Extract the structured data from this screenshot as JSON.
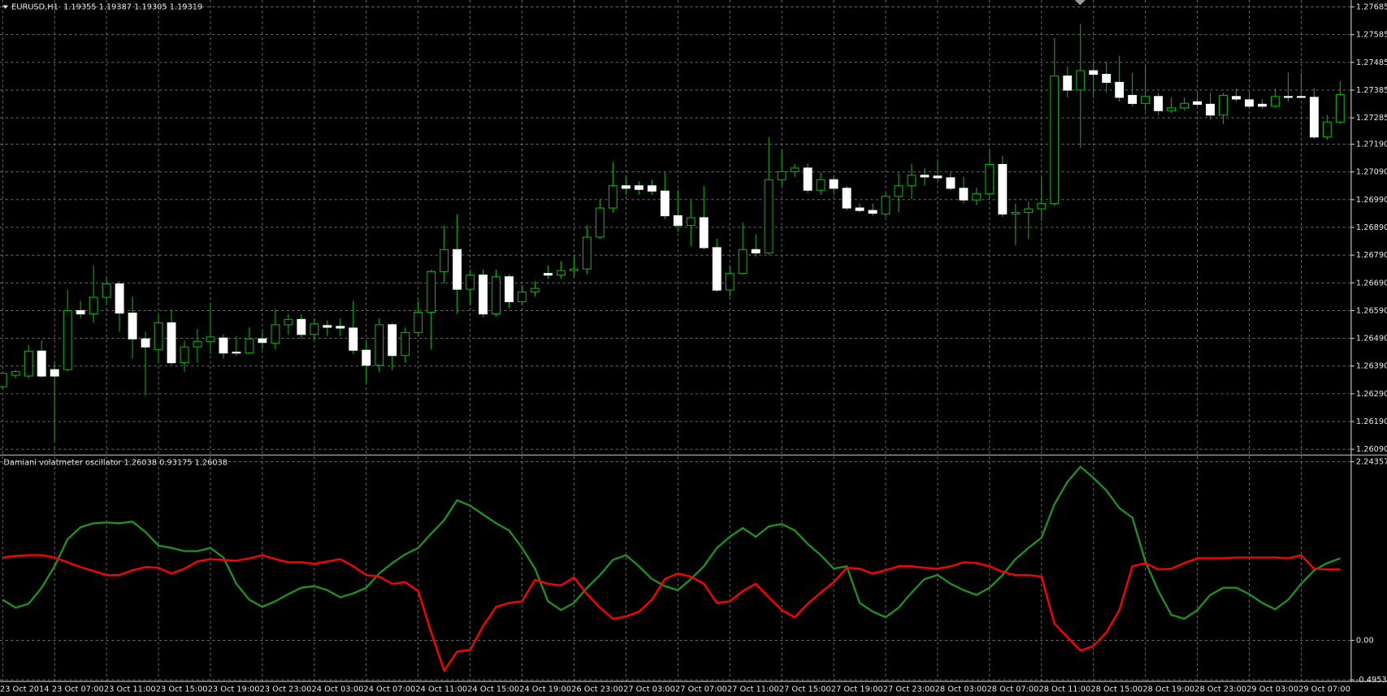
{
  "chart_data": [
    {
      "type": "candlestick",
      "title": "EURUSD,H1  1.19355 1.19387 1.19305 1.19319",
      "categories": [
        "23 Oct 2014",
        null,
        null,
        null,
        "23 Oct 07:00",
        null,
        null,
        null,
        "23 Oct 11:00",
        null,
        null,
        null,
        "23 Oct 15:00",
        null,
        null,
        null,
        "23 Oct 19:00",
        null,
        null,
        null,
        "23 Oct 23:00",
        null,
        null,
        null,
        "24 Oct 03:00",
        null,
        null,
        null,
        "24 Oct 07:00",
        null,
        null,
        null,
        "24 Oct 11:00",
        null,
        null,
        null,
        "24 Oct 15:00",
        null,
        null,
        null,
        "24 Oct 19:00",
        null,
        null,
        null,
        "26 Oct 23:00",
        null,
        null,
        null,
        "27 Oct 03:00",
        null,
        null,
        null,
        "27 Oct 07:00",
        null,
        null,
        null,
        "27 Oct 11:00",
        null,
        null,
        null,
        "27 Oct 15:00",
        null,
        null,
        null,
        "27 Oct 19:00",
        null,
        null,
        null,
        "27 Oct 23:00",
        null,
        null,
        null,
        "28 Oct 03:00",
        null,
        null,
        null,
        "28 Oct 07:00",
        null,
        null,
        null,
        "28 Oct 11:00",
        null,
        null,
        null,
        "28 Oct 15:00",
        null,
        null,
        null,
        "28 Oct 19:00",
        null,
        null,
        null,
        "28 Oct 23:00",
        null,
        null,
        null,
        "29 Oct 03:00",
        null,
        null,
        null,
        "29 Oct 07:00",
        null,
        null,
        null
      ],
      "open": [
        1.26316,
        1.26357,
        1.26354,
        1.26444,
        1.26377,
        1.26377,
        1.2659,
        1.26578,
        1.26638,
        1.26686,
        1.26581,
        1.26488,
        1.2645,
        1.26546,
        1.26402,
        1.26459,
        1.26479,
        1.26491,
        1.2644,
        1.26437,
        1.26488,
        1.26472,
        1.26539,
        1.26558,
        1.26504,
        1.26536,
        1.26533,
        1.26527,
        1.26447,
        1.26393,
        1.26539,
        1.26428,
        1.26511,
        1.26584,
        1.26731,
        1.2681,
        1.26667,
        1.26718,
        1.26578,
        1.26712,
        1.26622,
        1.26657,
        1.26724,
        1.26718,
        1.26734,
        1.2674,
        1.26855,
        1.2696,
        1.2704,
        1.2704,
        1.2704,
        1.27021,
        1.26932,
        1.26897,
        1.26925,
        1.26817,
        1.26664,
        1.26724,
        1.2681,
        1.26798,
        1.27062,
        1.27091,
        1.27104,
        1.27024,
        1.27062,
        1.27031,
        1.2696,
        1.26951,
        1.26938,
        1.27002,
        1.2704,
        1.27078,
        1.27075,
        1.27069,
        1.27031,
        1.26989,
        1.27011,
        1.27117,
        1.26938,
        1.26944,
        1.26957,
        1.26976,
        1.27436,
        1.27385,
        1.27455,
        1.27442,
        1.27413,
        1.27366,
        1.27337,
        1.27362,
        1.27311,
        1.27321,
        1.27343,
        1.27334,
        1.27295,
        1.27362,
        1.2735,
        1.27334,
        1.27327,
        1.27362,
        1.27362,
        1.27359,
        1.27216,
        1.2727
      ],
      "high": [
        1.2637,
        1.26377,
        1.26466,
        1.26482,
        1.26402,
        1.26664,
        1.26625,
        1.26753,
        1.26708,
        1.26696,
        1.26641,
        1.26514,
        1.26578,
        1.26594,
        1.26482,
        1.26523,
        1.26616,
        1.26504,
        1.26498,
        1.2653,
        1.26514,
        1.26594,
        1.26578,
        1.26578,
        1.26562,
        1.26555,
        1.26562,
        1.26625,
        1.26482,
        1.26562,
        1.26546,
        1.2653,
        1.26625,
        1.26737,
        1.26897,
        1.26938,
        1.26737,
        1.26737,
        1.26737,
        1.26721,
        1.26683,
        1.26696,
        1.26753,
        1.26769,
        1.26785,
        1.26897,
        1.26992,
        1.27126,
        1.27072,
        1.27056,
        1.27062,
        1.27088,
        1.27024,
        1.26992,
        1.2704,
        1.26849,
        1.26753,
        1.26906,
        1.26865,
        1.27216,
        1.27168,
        1.2712,
        1.2712,
        1.27088,
        1.27078,
        1.2704,
        1.26976,
        1.26976,
        1.27015,
        1.27088,
        1.2712,
        1.27104,
        1.27126,
        1.27088,
        1.27072,
        1.27034,
        1.27168,
        1.27149,
        1.26976,
        1.26983,
        1.27072,
        1.27573,
        1.27471,
        1.27624,
        1.27487,
        1.27487,
        1.27509,
        1.27448,
        1.27471,
        1.27375,
        1.27359,
        1.27359,
        1.27375,
        1.27375,
        1.27375,
        1.27391,
        1.27375,
        1.27353,
        1.27391,
        1.27448,
        1.27448,
        1.27391,
        1.27295,
        1.27417
      ],
      "low": [
        1.26306,
        1.26345,
        1.26345,
        1.26348,
        1.26121,
        1.2637,
        1.26562,
        1.26546,
        1.26609,
        1.26514,
        1.26418,
        1.26284,
        1.26402,
        1.26396,
        1.2637,
        1.26402,
        1.26434,
        1.26418,
        1.26428,
        1.26434,
        1.2645,
        1.2645,
        1.26504,
        1.26488,
        1.26482,
        1.26498,
        1.26498,
        1.26434,
        1.26329,
        1.2637,
        1.26377,
        1.26402,
        1.26498,
        1.2645,
        1.26689,
        1.26578,
        1.26609,
        1.26568,
        1.26568,
        1.266,
        1.26609,
        1.26641,
        1.26705,
        1.26705,
        1.26715,
        1.26721,
        1.26849,
        1.26944,
        1.27008,
        1.27008,
        1.27008,
        1.26919,
        1.26874,
        1.26823,
        1.2681,
        1.26657,
        1.26641,
        1.26721,
        1.26785,
        1.26791,
        1.2704,
        1.27072,
        1.27015,
        1.27008,
        1.27008,
        1.26951,
        1.26944,
        1.26932,
        1.26928,
        1.26944,
        1.26992,
        1.2704,
        1.27056,
        1.27024,
        1.26976,
        1.2697,
        1.26992,
        1.26928,
        1.26826,
        1.26849,
        1.26912,
        1.26967,
        1.27359,
        1.27177,
        1.27359,
        1.27375,
        1.27343,
        1.27327,
        1.27311,
        1.27295,
        1.27302,
        1.27311,
        1.27327,
        1.27279,
        1.27263,
        1.27343,
        1.27321,
        1.27318,
        1.27321,
        1.27343,
        1.27359,
        1.27209,
        1.27206,
        1.27263
      ],
      "close": [
        1.26364,
        1.2637,
        1.26444,
        1.26354,
        1.26354,
        1.2659,
        1.26578,
        1.26638,
        1.26686,
        1.26581,
        1.26488,
        1.26459,
        1.26546,
        1.26402,
        1.26459,
        1.26479,
        1.26495,
        1.26437,
        1.26437,
        1.26488,
        1.26475,
        1.26539,
        1.26558,
        1.26504,
        1.26542,
        1.2653,
        1.26527,
        1.26447,
        1.26393,
        1.26539,
        1.26428,
        1.26511,
        1.26584,
        1.26731,
        1.2681,
        1.26667,
        1.26718,
        1.26578,
        1.26712,
        1.26622,
        1.26657,
        1.2667,
        1.26718,
        1.26734,
        1.2674,
        1.26855,
        1.2696,
        1.2704,
        1.27031,
        1.27027,
        1.27021,
        1.26932,
        1.26897,
        1.26925,
        1.26817,
        1.26664,
        1.26724,
        1.2681,
        1.26798,
        1.27062,
        1.27091,
        1.27104,
        1.27024,
        1.27062,
        1.27031,
        1.2696,
        1.26951,
        1.26941,
        1.27002,
        1.2704,
        1.27078,
        1.27072,
        1.27069,
        1.27031,
        1.26989,
        1.27011,
        1.27117,
        1.26938,
        1.26944,
        1.26957,
        1.26976,
        1.27436,
        1.27385,
        1.27455,
        1.27442,
        1.27413,
        1.27359,
        1.27337,
        1.27362,
        1.27311,
        1.27321,
        1.27337,
        1.27334,
        1.27295,
        1.27366,
        1.27353,
        1.27327,
        1.27327,
        1.27362,
        1.27359,
        1.27359,
        1.27216,
        1.2727,
        1.27369
      ],
      "up_color": "#000000",
      "down_color": "#ffffff",
      "wick_color": "#00b400",
      "ylim": [
        1.26074,
        1.2771
      ],
      "yticks": [
        1.27685,
        1.27585,
        1.27485,
        1.27385,
        1.27285,
        {
          "value": 1.2719,
          "label": "1.27190"
        },
        {
          "value": 1.2709,
          "label": "1.27090"
        },
        {
          "value": 1.2699,
          "label": "1.26990"
        },
        {
          "value": 1.2689,
          "label": "1.26890"
        },
        {
          "value": 1.2679,
          "label": "1.26790"
        },
        {
          "value": 1.2669,
          "label": "1.26690"
        },
        {
          "value": 1.2659,
          "label": "1.26590"
        },
        {
          "value": 1.2649,
          "label": "1.26490"
        },
        {
          "value": 1.2639,
          "label": "1.26390"
        },
        {
          "value": 1.2629,
          "label": "1.26290"
        },
        {
          "value": 1.2619,
          "label": "1.26190"
        },
        {
          "value": 1.2609,
          "label": "1.26090"
        }
      ],
      "grid": true
    },
    {
      "type": "line",
      "title": "Damiani volatmeter oscillator 1.26038 0.93175 1.26038",
      "series": [
        {
          "color": "#1f8f1f",
          "values": [
            0.51,
            0.41,
            0.46,
            0.66,
            0.93,
            1.27,
            1.42,
            1.47,
            1.48,
            1.47,
            1.49,
            1.36,
            1.19,
            1.16,
            1.12,
            1.12,
            1.16,
            1.04,
            0.71,
            0.51,
            0.42,
            0.49,
            0.58,
            0.66,
            0.68,
            0.63,
            0.54,
            0.59,
            0.66,
            0.84,
            0.97,
            1.08,
            1.16,
            1.34,
            1.51,
            1.76,
            1.69,
            1.58,
            1.47,
            1.38,
            1.16,
            0.9,
            0.49,
            0.38,
            0.47,
            0.66,
            0.82,
            1.01,
            1.07,
            0.93,
            0.77,
            0.68,
            0.63,
            0.77,
            0.93,
            1.16,
            1.3,
            1.41,
            1.3,
            1.43,
            1.46,
            1.38,
            1.21,
            1.07,
            0.9,
            0.93,
            0.47,
            0.36,
            0.29,
            0.41,
            0.6,
            0.77,
            0.82,
            0.71,
            0.63,
            0.57,
            0.66,
            0.82,
            1.02,
            1.16,
            1.29,
            1.71,
            1.99,
            2.18,
            2.04,
            1.88,
            1.66,
            1.54,
            0.99,
            0.62,
            0.32,
            0.27,
            0.38,
            0.57,
            0.66,
            0.66,
            0.58,
            0.47,
            0.39,
            0.51,
            0.71,
            0.88,
            0.97,
            1.03
          ]
        },
        {
          "color": "#ff0000",
          "values": [
            1.04,
            1.06,
            1.07,
            1.07,
            1.04,
            0.98,
            0.92,
            0.87,
            0.82,
            0.82,
            0.88,
            0.92,
            0.91,
            0.84,
            0.9,
            0.99,
            1.02,
            1.01,
            1.0,
            1.03,
            1.07,
            1.02,
            0.98,
            0.98,
            0.96,
            0.99,
            1.02,
            0.93,
            0.82,
            0.8,
            0.71,
            0.73,
            0.62,
            0.1,
            -0.38,
            -0.14,
            -0.12,
            0.18,
            0.42,
            0.47,
            0.49,
            0.76,
            0.71,
            0.69,
            0.79,
            0.58,
            0.41,
            0.27,
            0.3,
            0.36,
            0.51,
            0.77,
            0.84,
            0.8,
            0.71,
            0.47,
            0.49,
            0.62,
            0.71,
            0.54,
            0.38,
            0.29,
            0.46,
            0.6,
            0.73,
            0.91,
            0.9,
            0.84,
            0.88,
            0.93,
            0.93,
            0.91,
            0.9,
            0.93,
            0.98,
            0.97,
            0.93,
            0.86,
            0.82,
            0.82,
            0.8,
            0.21,
            0.04,
            -0.13,
            -0.07,
            0.1,
            0.38,
            0.93,
            0.97,
            0.89,
            0.9,
            0.97,
            1.03,
            1.03,
            1.03,
            1.04,
            1.04,
            1.04,
            1.04,
            1.03,
            1.07,
            0.9,
            0.89,
            0.89
          ]
        }
      ],
      "ylim": [
        -0.51,
        2.31
      ],
      "yticks": [
        2.24357,
        {
          "value": 0,
          "label": "0.00"
        },
        -0.49536
      ],
      "grid": true
    }
  ]
}
